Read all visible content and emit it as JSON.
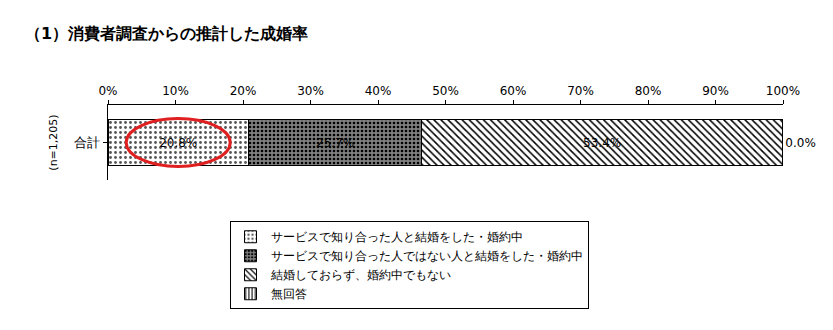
{
  "chart_data": {
    "type": "bar",
    "orientation": "horizontal",
    "stacked": true,
    "title": "（1）消費者調査からの推計した成婚率",
    "y_label": "(n=1,205)",
    "categories": [
      "合計"
    ],
    "series": [
      {
        "name": "サービスで知り合った人と結婚をした・婚約中",
        "color": "#ffffff",
        "values": [
          20.8
        ],
        "value_labels": [
          "20.8%"
        ]
      },
      {
        "name": "サービスで知り合った人ではない人と結婚をした・婚約中",
        "color": "#7f7f7f",
        "values": [
          25.7
        ],
        "value_labels": [
          "25.7%"
        ]
      },
      {
        "name": "結婚しておらず、婚約中でもない",
        "color": "#ffffff",
        "values": [
          53.4
        ],
        "value_labels": [
          "53.4%"
        ]
      },
      {
        "name": "無回答",
        "color": "#ffffff",
        "values": [
          0.0
        ],
        "value_labels": [
          "0.0%"
        ]
      }
    ],
    "xlim": [
      0,
      100
    ],
    "xticks": [
      {
        "value": 0,
        "label": "0%"
      },
      {
        "value": 10,
        "label": "10%"
      },
      {
        "value": 20,
        "label": "20%"
      },
      {
        "value": 30,
        "label": "30%"
      },
      {
        "value": 40,
        "label": "40%"
      },
      {
        "value": 50,
        "label": "50%"
      },
      {
        "value": 60,
        "label": "60%"
      },
      {
        "value": 70,
        "label": "70%"
      },
      {
        "value": 80,
        "label": "80%"
      },
      {
        "value": 90,
        "label": "90%"
      },
      {
        "value": 100,
        "label": "100%"
      }
    ],
    "grid": false,
    "legend": "bottom",
    "data_labels": true
  }
}
